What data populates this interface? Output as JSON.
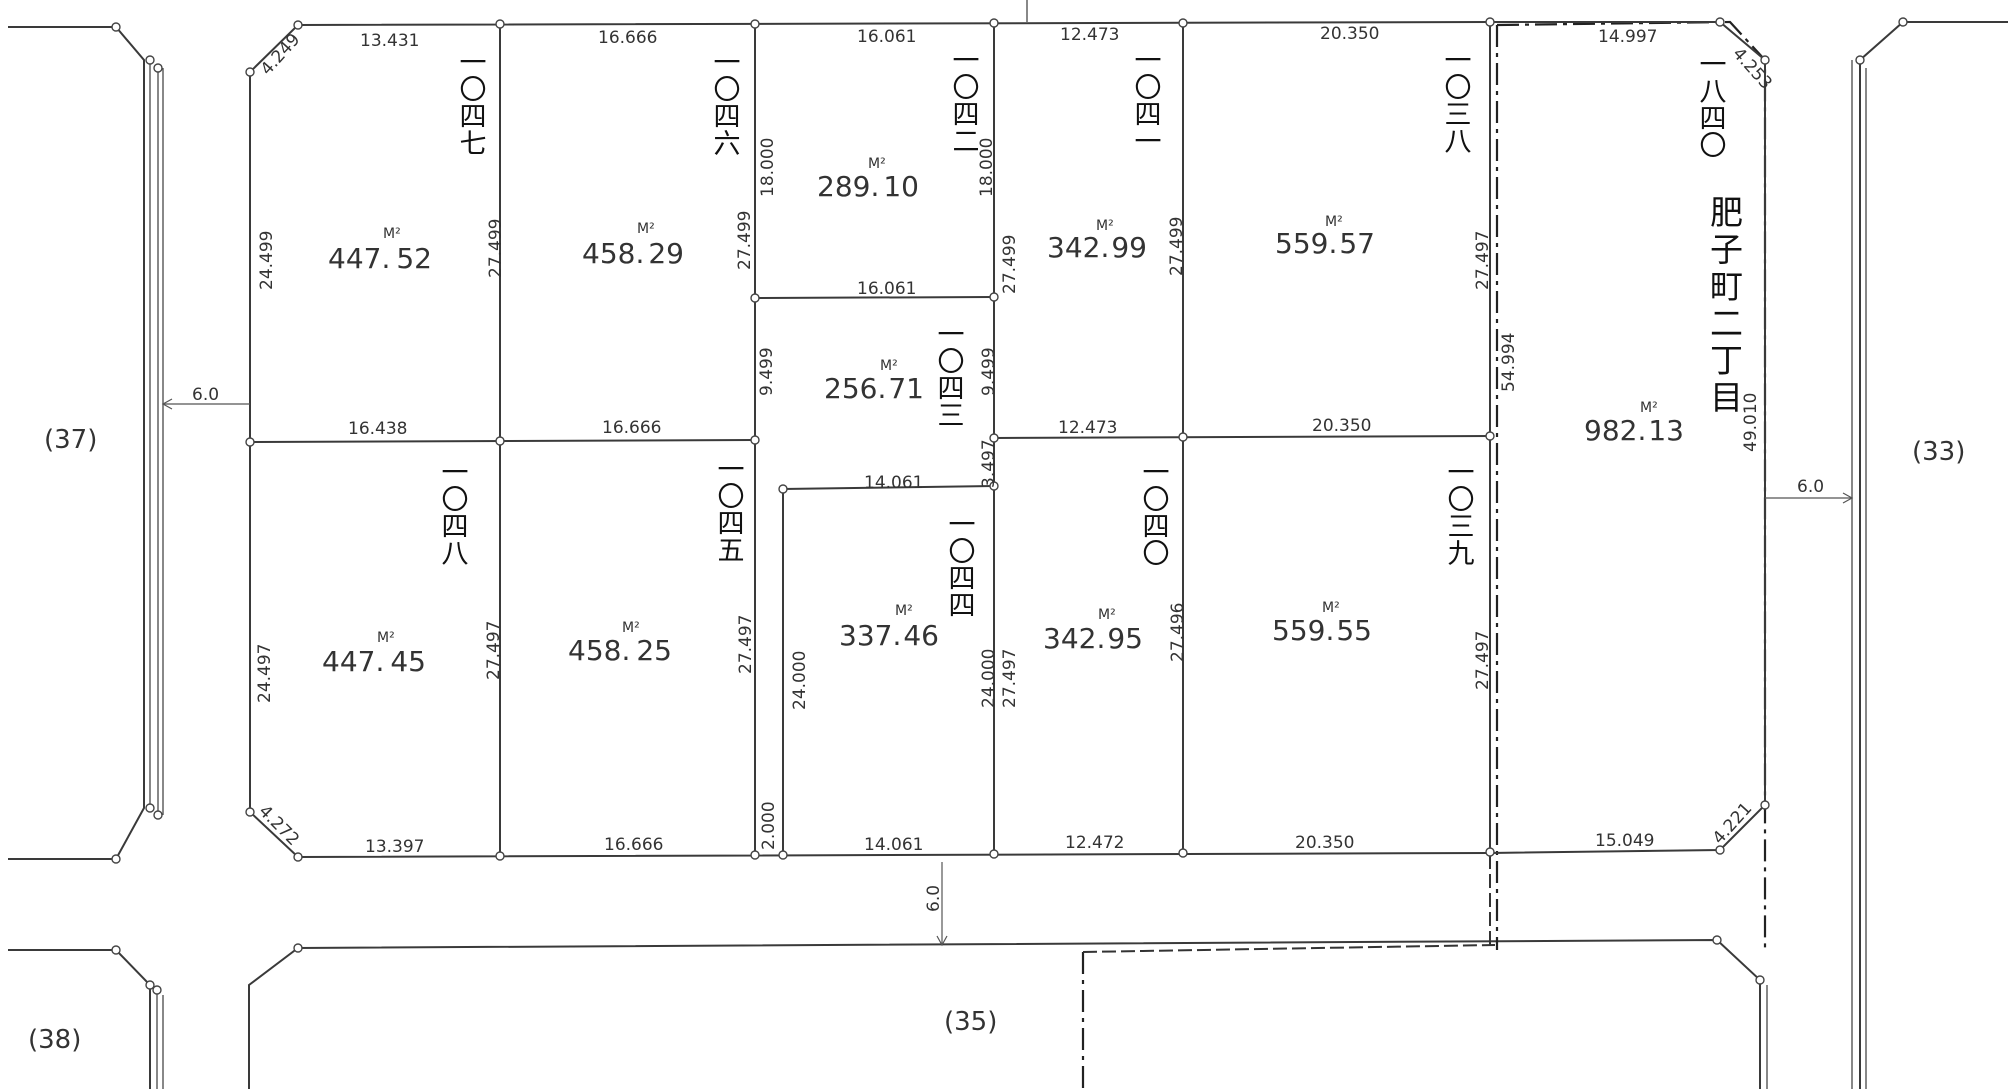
{
  "map": {
    "town_name": "肥子町二丁目",
    "unit": "M²",
    "blocks": [
      {
        "name": "block-37",
        "label": "(37)"
      },
      {
        "name": "block-33",
        "label": "(33)"
      },
      {
        "name": "block-38",
        "label": "(38)"
      },
      {
        "name": "block-35",
        "label": "(35)"
      }
    ],
    "road_widths": [
      {
        "name": "road-width-west",
        "value": "6.0"
      },
      {
        "name": "road-width-east",
        "value": "6.0"
      },
      {
        "name": "road-width-south",
        "value": "6.0"
      }
    ],
    "lots": [
      {
        "id": "1047",
        "number": "一〇四七",
        "area_int": "447.",
        "area_dec": "52"
      },
      {
        "id": "1046",
        "number": "一〇四六",
        "area_int": "458.",
        "area_dec": "29"
      },
      {
        "id": "1042",
        "number": "一〇四二",
        "area_int": "289.",
        "area_dec": "10"
      },
      {
        "id": "1041",
        "number": "一〇四一",
        "area_int": "342.",
        "area_dec": "99"
      },
      {
        "id": "1038",
        "number": "一〇三八",
        "area_int": "559.",
        "area_dec": "57"
      },
      {
        "id": "1043",
        "number": "一〇四三",
        "area_int": "256.",
        "area_dec": "71"
      },
      {
        "id": "1840",
        "number": "一八四〇",
        "area_int": "982.",
        "area_dec": "13"
      },
      {
        "id": "1048",
        "number": "一〇四八",
        "area_int": "447.",
        "area_dec": "45"
      },
      {
        "id": "1045",
        "number": "一〇四五",
        "area_int": "458.",
        "area_dec": "25"
      },
      {
        "id": "1044",
        "number": "一〇四四",
        "area_int": "337.",
        "area_dec": "46"
      },
      {
        "id": "1040",
        "number": "一〇四〇",
        "area_int": "342.",
        "area_dec": "95"
      },
      {
        "id": "1039",
        "number": "一〇三九",
        "area_int": "559.",
        "area_dec": "55"
      }
    ],
    "dimensions": [
      "13.431",
      "4.249",
      "16.666",
      "16.061",
      "12.473",
      "20.350",
      "14.997",
      "4.253",
      "24.499",
      "27.499",
      "27.499",
      "18.000",
      "18.000",
      "27.499",
      "27.499",
      "27.497",
      "16.061",
      "9.499",
      "9.499",
      "54.994",
      "49.010",
      "16.438",
      "16.666",
      "12.473",
      "20.350",
      "14.061",
      "3.497",
      "24.497",
      "27.497",
      "27.497",
      "24.000",
      "24.000",
      "27.497",
      "27.496",
      "27.497",
      "4.272",
      "13.397",
      "16.666",
      "2.000",
      "14.061",
      "12.472",
      "20.350",
      "15.049",
      "4.221"
    ]
  }
}
